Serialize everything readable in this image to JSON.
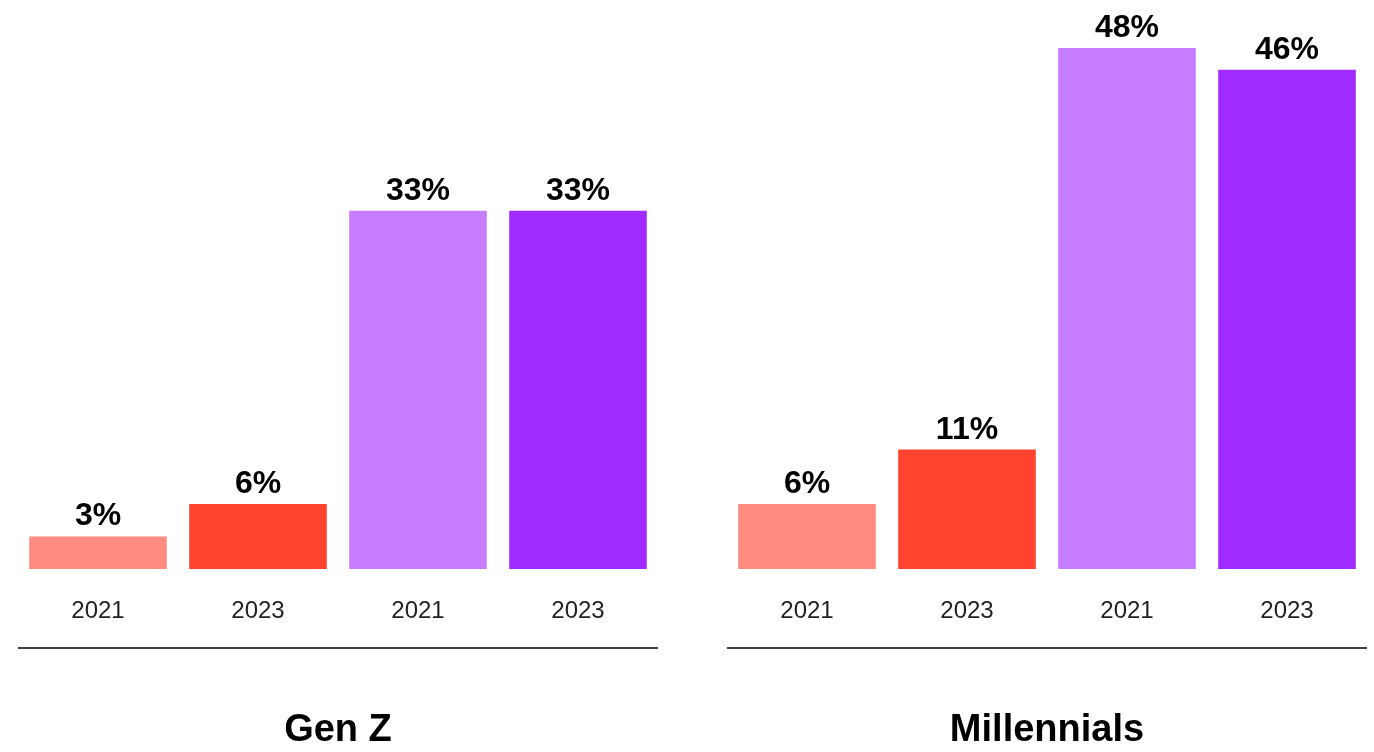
{
  "chart_data": [
    {
      "type": "bar",
      "xlabel": "Gen Z",
      "categories": [
        "2021",
        "2023",
        "2021",
        "2023"
      ],
      "values": [
        3,
        6,
        33,
        33
      ],
      "value_labels": [
        "3%",
        "6%",
        "33%",
        "33%"
      ],
      "colors": [
        "#ff8c80",
        "#ff432e",
        "#c77dff",
        "#a02bff"
      ]
    },
    {
      "type": "bar",
      "xlabel": "Millennials",
      "categories": [
        "2021",
        "2023",
        "2021",
        "2023"
      ],
      "values": [
        6,
        11,
        48,
        46
      ],
      "value_labels": [
        "6%",
        "11%",
        "48%",
        "46%"
      ],
      "colors": [
        "#ff8c80",
        "#ff432e",
        "#c77dff",
        "#a02bff"
      ]
    }
  ]
}
